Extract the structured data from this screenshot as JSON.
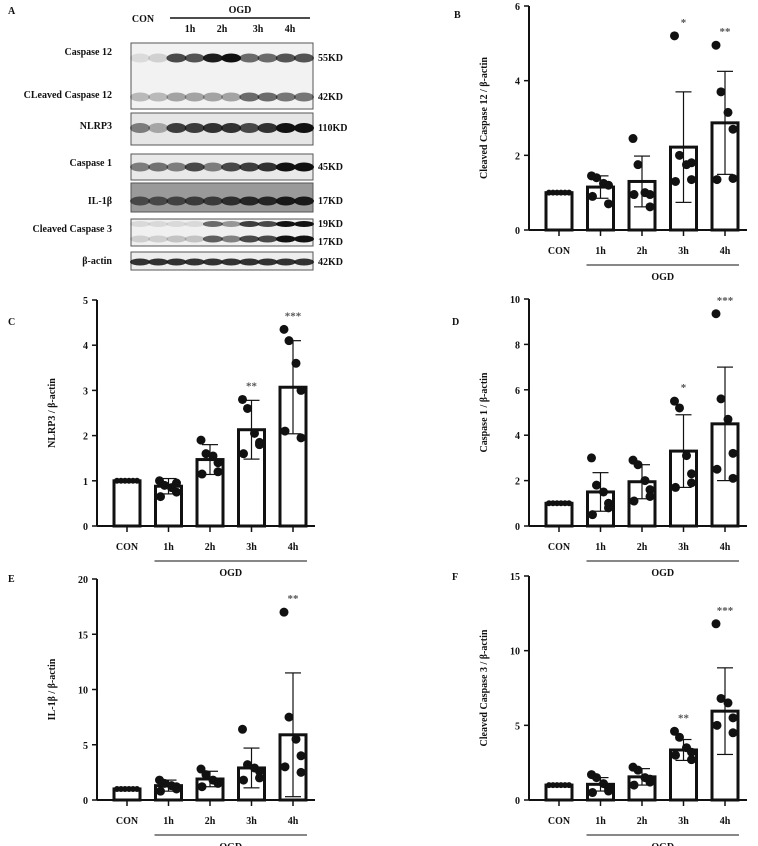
{
  "panel_letters": [
    "A",
    "B",
    "C",
    "D",
    "E",
    "F"
  ],
  "blot": {
    "header_con": "CON",
    "header_group": "OGD",
    "lanes": [
      "1h",
      "2h",
      "3h",
      "4h"
    ],
    "rows": [
      {
        "label": "Caspase 12",
        "kd": "55KD",
        "band_intensity": [
          0.1,
          0.15,
          0.75,
          0.7,
          0.95,
          1,
          0.6,
          0.6,
          0.7,
          0.7
        ]
      },
      {
        "label": "CLeaved Caspase 12",
        "kd": "42KD",
        "band_intensity": [
          0.25,
          0.25,
          0.35,
          0.35,
          0.35,
          0.35,
          0.6,
          0.6,
          0.55,
          0.55
        ]
      },
      {
        "label": "NLRP3",
        "kd": "110KD",
        "band_intensity": [
          0.5,
          0.3,
          0.8,
          0.8,
          0.85,
          0.85,
          0.75,
          0.85,
          1,
          1
        ]
      },
      {
        "label": "Caspase 1",
        "kd": "45KD",
        "band_intensity": [
          0.5,
          0.55,
          0.5,
          0.75,
          0.5,
          0.75,
          0.8,
          0.85,
          1,
          1
        ]
      },
      {
        "label": "IL-1β",
        "kd": "17KD",
        "band_intensity": [
          0.6,
          0.6,
          0.65,
          0.7,
          0.7,
          0.8,
          0.85,
          0.85,
          0.95,
          0.95
        ]
      },
      {
        "label": "Cleaved Caspase 3",
        "kd_top": "19KD",
        "kd": "17KD",
        "band_intensity_top": [
          0.1,
          0.1,
          0.1,
          0.1,
          0.6,
          0.4,
          0.8,
          0.75,
          1,
          1
        ],
        "band_intensity": [
          0.15,
          0.15,
          0.2,
          0.2,
          0.65,
          0.5,
          0.75,
          0.75,
          1,
          1
        ]
      },
      {
        "label": "β-actin",
        "kd": "42KD",
        "band_intensity": [
          0.85,
          0.85,
          0.85,
          0.85,
          0.85,
          0.85,
          0.85,
          0.85,
          0.85,
          0.85
        ]
      }
    ]
  },
  "chart_data": [
    {
      "panel": "B",
      "type": "bar",
      "ylabel": "Cleaved Caspase 12 / β-actin",
      "ylim": [
        0,
        6
      ],
      "yticks": [
        0,
        2,
        4,
        6
      ],
      "categories": [
        "CON",
        "1h",
        "2h",
        "3h",
        "4h"
      ],
      "group_label": "OGD",
      "means": [
        1,
        1.15,
        1.3,
        2.22,
        2.87
      ],
      "sd": [
        0,
        0.3,
        0.68,
        1.48,
        1.38
      ],
      "points": [
        [
          1,
          1,
          1,
          1,
          1,
          1
        ],
        [
          1.45,
          1.4,
          1.25,
          1.2,
          0.9,
          0.7
        ],
        [
          2.45,
          1.75,
          1.0,
          0.95,
          0.95,
          0.62
        ],
        [
          5.2,
          2.0,
          1.75,
          1.8,
          1.3,
          1.35
        ],
        [
          4.95,
          3.7,
          3.15,
          2.7,
          1.35,
          1.38
        ]
      ],
      "significance": [
        "",
        "",
        "",
        "*",
        "**"
      ]
    },
    {
      "panel": "C",
      "type": "bar",
      "ylabel": "NLRP3 / β-actin",
      "ylim": [
        0,
        5
      ],
      "yticks": [
        0,
        1,
        2,
        3,
        4,
        5
      ],
      "categories": [
        "CON",
        "1h",
        "2h",
        "3h",
        "4h"
      ],
      "group_label": "OGD",
      "means": [
        1,
        0.88,
        1.47,
        2.13,
        3.07
      ],
      "sd": [
        0,
        0.17,
        0.33,
        0.65,
        1.03
      ],
      "points": [
        [
          1,
          1,
          1,
          1,
          1,
          1
        ],
        [
          1.0,
          0.9,
          0.85,
          0.75,
          0.65,
          0.95
        ],
        [
          1.9,
          1.6,
          1.55,
          1.4,
          1.15,
          1.2
        ],
        [
          2.8,
          2.6,
          2.05,
          1.85,
          1.6,
          1.8
        ],
        [
          4.35,
          4.1,
          3.6,
          3.0,
          2.1,
          1.95
        ]
      ],
      "significance": [
        "",
        "",
        "",
        "**",
        "***"
      ]
    },
    {
      "panel": "D",
      "type": "bar",
      "ylabel": "Caspase 1 / β-actin",
      "ylim": [
        0,
        10
      ],
      "yticks": [
        0,
        2,
        4,
        6,
        8,
        10
      ],
      "categories": [
        "CON",
        "1h",
        "2h",
        "3h",
        "4h"
      ],
      "group_label": "OGD",
      "means": [
        1,
        1.5,
        1.95,
        3.3,
        4.5
      ],
      "sd": [
        0,
        0.85,
        0.75,
        1.6,
        2.5
      ],
      "points": [
        [
          1,
          1,
          1,
          1,
          1,
          1
        ],
        [
          3.0,
          1.8,
          1.5,
          1.0,
          0.5,
          0.8
        ],
        [
          2.9,
          2.7,
          2.0,
          1.6,
          1.1,
          1.3
        ],
        [
          5.5,
          5.2,
          3.1,
          2.3,
          1.7,
          1.9
        ],
        [
          9.35,
          5.6,
          4.7,
          3.2,
          2.5,
          2.1
        ]
      ],
      "significance": [
        "",
        "",
        "",
        "*",
        "***"
      ]
    },
    {
      "panel": "E",
      "type": "bar",
      "ylabel": "IL-1β / β-actin",
      "ylim": [
        0,
        20
      ],
      "yticks": [
        0,
        5,
        10,
        15,
        20
      ],
      "categories": [
        "CON",
        "1h",
        "2h",
        "3h",
        "4h"
      ],
      "group_label": "OGD",
      "means": [
        1,
        1.3,
        1.9,
        2.9,
        5.9
      ],
      "sd": [
        0,
        0.5,
        0.7,
        1.8,
        5.6
      ],
      "points": [
        [
          1,
          1,
          1,
          1,
          1,
          1
        ],
        [
          1.8,
          1.5,
          1.3,
          1.0,
          0.8,
          1.2
        ],
        [
          2.8,
          2.3,
          1.8,
          1.5,
          1.2,
          1.6
        ],
        [
          6.4,
          3.2,
          2.9,
          2.6,
          1.8,
          2.0
        ],
        [
          17,
          7.5,
          5.5,
          4.0,
          3.0,
          2.5
        ]
      ],
      "significance": [
        "",
        "",
        "",
        "",
        "**"
      ]
    },
    {
      "panel": "F",
      "type": "bar",
      "ylabel": "Cleaved Caspase 3 / β-actin",
      "ylim": [
        0,
        15
      ],
      "yticks": [
        0,
        5,
        10,
        15
      ],
      "categories": [
        "CON",
        "1h",
        "2h",
        "3h",
        "4h"
      ],
      "group_label": "OGD",
      "means": [
        1,
        1.05,
        1.55,
        3.35,
        5.95
      ],
      "sd": [
        0,
        0.45,
        0.55,
        0.7,
        2.9
      ],
      "points": [
        [
          1,
          1,
          1,
          1,
          1,
          1
        ],
        [
          1.7,
          1.5,
          1.1,
          0.8,
          0.5,
          0.6
        ],
        [
          2.2,
          2.0,
          1.5,
          1.2,
          1.0,
          1.4
        ],
        [
          4.6,
          4.2,
          3.5,
          3.2,
          3.0,
          2.7
        ],
        [
          11.8,
          6.8,
          6.5,
          5.5,
          5.0,
          4.5
        ]
      ],
      "significance": [
        "",
        "",
        "",
        "**",
        "***"
      ]
    }
  ]
}
